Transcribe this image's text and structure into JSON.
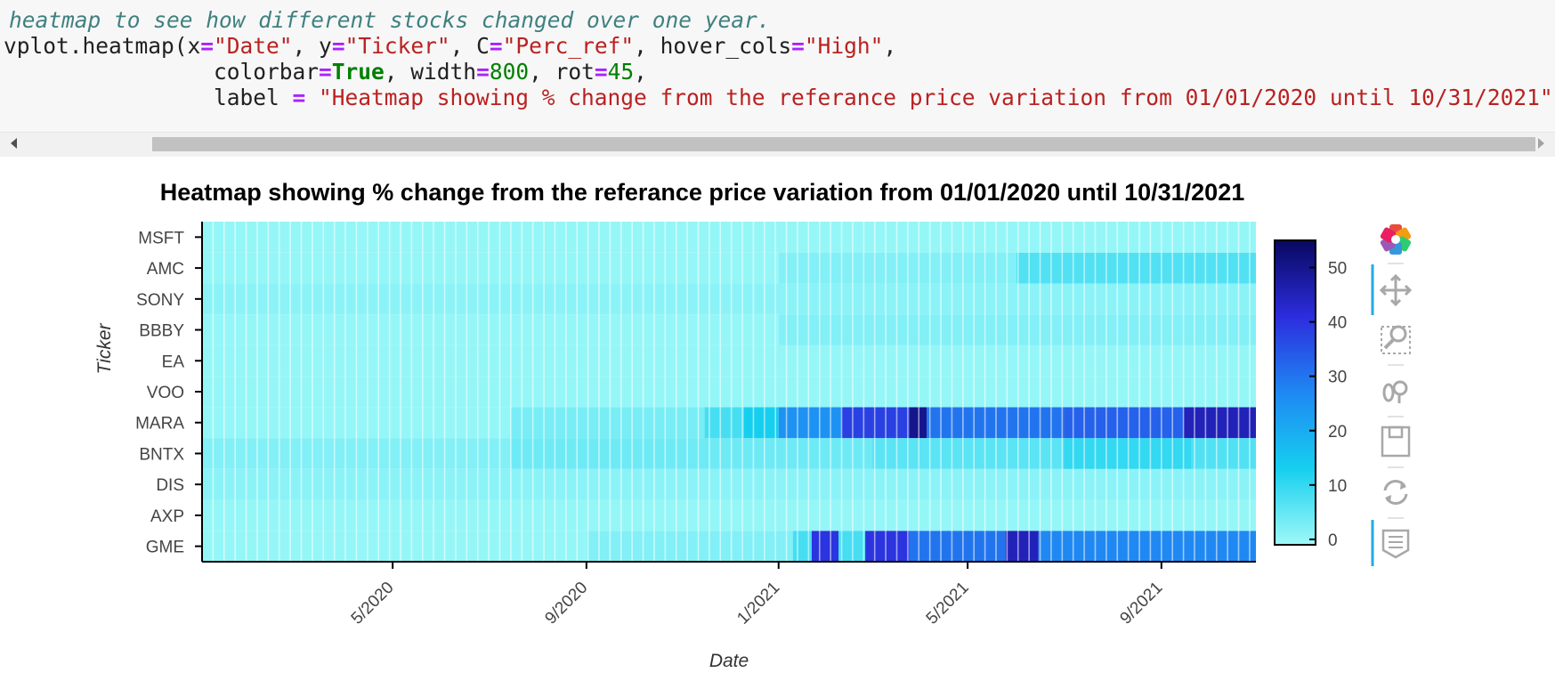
{
  "code": {
    "comment": "heatmap to see how different stocks changed over one year.",
    "line1_parts": [
      {
        "t": "vplot.heatmap(x",
        "c": ""
      },
      {
        "t": "=",
        "c": "op"
      },
      {
        "t": "\"Date\"",
        "c": "str"
      },
      {
        "t": ", y",
        "c": ""
      },
      {
        "t": "=",
        "c": "op"
      },
      {
        "t": "\"Ticker\"",
        "c": "str"
      },
      {
        "t": ", C",
        "c": ""
      },
      {
        "t": "=",
        "c": "op"
      },
      {
        "t": "\"Perc_ref\"",
        "c": "str"
      },
      {
        "t": ", hover_cols",
        "c": ""
      },
      {
        "t": "=",
        "c": "op"
      },
      {
        "t": "\"High\"",
        "c": "str"
      },
      {
        "t": ",",
        "c": ""
      }
    ],
    "line2_parts": [
      {
        "t": "                colorbar",
        "c": ""
      },
      {
        "t": "=",
        "c": "op"
      },
      {
        "t": "True",
        "c": "kw"
      },
      {
        "t": ", width",
        "c": ""
      },
      {
        "t": "=",
        "c": "op"
      },
      {
        "t": "800",
        "c": "num"
      },
      {
        "t": ", rot",
        "c": ""
      },
      {
        "t": "=",
        "c": "op"
      },
      {
        "t": "45",
        "c": "num"
      },
      {
        "t": ",",
        "c": ""
      }
    ],
    "line3_parts": [
      {
        "t": "                label ",
        "c": ""
      },
      {
        "t": "=",
        "c": "op"
      },
      {
        "t": " ",
        "c": ""
      },
      {
        "t": "\"Heatmap showing % change from the referance price variation from 01/01/2020 until 10/31/2021\"",
        "c": "str"
      },
      {
        "t": ")",
        "c": ""
      }
    ]
  },
  "toolbar": {
    "tools": [
      "bokeh-logo-icon",
      "pan-icon",
      "box-zoom-icon",
      "wheel-zoom-icon",
      "save-icon",
      "reset-icon",
      "hover-icon"
    ]
  },
  "colors": {
    "colormap": [
      "#9ff9f8",
      "#16cfef",
      "#1f88f3",
      "#2c2ddd",
      "#080860"
    ],
    "code_background": "#f7f7f7",
    "scrollbar_thumb": "#c1c1c1",
    "toolbar_active": "#26aae1"
  },
  "chart_data": {
    "type": "heatmap",
    "title": "Heatmap showing % change from the referance price variation from 01/01/2020 until 10/31/2021",
    "xlabel": "Date",
    "ylabel": "Ticker",
    "x_start": "2020-01-01",
    "x_end": "2021-10-31",
    "x_ticks": [
      "5/2020",
      "9/2020",
      "1/2021",
      "5/2021",
      "9/2021"
    ],
    "x_tick_dates": [
      "2020-05-01",
      "2020-09-01",
      "2021-01-01",
      "2021-05-01",
      "2021-09-01"
    ],
    "y_categories": [
      "GME",
      "AXP",
      "DIS",
      "BNTX",
      "MARA",
      "VOO",
      "EA",
      "BBBY",
      "SONY",
      "AMC",
      "MSFT"
    ],
    "colorbar": {
      "min": -1,
      "max": 55,
      "ticks": [
        0,
        10,
        20,
        30,
        40,
        50
      ]
    },
    "series": [
      {
        "name": "GME",
        "segments": [
          {
            "from": "2020-01-01",
            "to": "2020-09-01",
            "value": 0
          },
          {
            "from": "2020-09-01",
            "to": "2021-01-10",
            "value": 2
          },
          {
            "from": "2021-01-10",
            "to": "2021-01-22",
            "value": 8
          },
          {
            "from": "2021-01-22",
            "to": "2021-02-08",
            "value": 40
          },
          {
            "from": "2021-02-08",
            "to": "2021-02-25",
            "value": 8
          },
          {
            "from": "2021-02-25",
            "to": "2021-03-25",
            "value": 40
          },
          {
            "from": "2021-03-25",
            "to": "2021-05-25",
            "value": 30
          },
          {
            "from": "2021-05-25",
            "to": "2021-06-15",
            "value": 45
          },
          {
            "from": "2021-06-15",
            "to": "2021-10-31",
            "value": 27
          }
        ]
      },
      {
        "name": "AXP",
        "segments": [
          {
            "from": "2020-01-01",
            "to": "2021-10-31",
            "value": 0
          }
        ]
      },
      {
        "name": "DIS",
        "segments": [
          {
            "from": "2020-01-01",
            "to": "2021-10-31",
            "value": 1
          }
        ]
      },
      {
        "name": "BNTX",
        "segments": [
          {
            "from": "2020-01-01",
            "to": "2020-07-15",
            "value": 2
          },
          {
            "from": "2020-07-15",
            "to": "2021-03-01",
            "value": 4
          },
          {
            "from": "2021-03-01",
            "to": "2021-07-01",
            "value": 6
          },
          {
            "from": "2021-07-01",
            "to": "2021-09-20",
            "value": 10
          },
          {
            "from": "2021-09-20",
            "to": "2021-10-31",
            "value": 7
          }
        ]
      },
      {
        "name": "MARA",
        "segments": [
          {
            "from": "2020-01-01",
            "to": "2020-07-15",
            "value": 0
          },
          {
            "from": "2020-07-15",
            "to": "2020-11-15",
            "value": 3
          },
          {
            "from": "2020-11-15",
            "to": "2020-12-10",
            "value": 8
          },
          {
            "from": "2020-12-10",
            "to": "2021-01-01",
            "value": 13
          },
          {
            "from": "2021-01-01",
            "to": "2021-02-10",
            "value": 25
          },
          {
            "from": "2021-02-10",
            "to": "2021-03-25",
            "value": 38
          },
          {
            "from": "2021-03-25",
            "to": "2021-04-05",
            "value": 50
          },
          {
            "from": "2021-04-05",
            "to": "2021-07-01",
            "value": 30
          },
          {
            "from": "2021-07-01",
            "to": "2021-09-15",
            "value": 33
          },
          {
            "from": "2021-09-15",
            "to": "2021-10-31",
            "value": 45
          }
        ]
      },
      {
        "name": "VOO",
        "segments": [
          {
            "from": "2020-01-01",
            "to": "2021-10-31",
            "value": 0
          }
        ]
      },
      {
        "name": "EA",
        "segments": [
          {
            "from": "2020-01-01",
            "to": "2021-10-31",
            "value": 0
          }
        ]
      },
      {
        "name": "BBBY",
        "segments": [
          {
            "from": "2020-01-01",
            "to": "2021-01-01",
            "value": 0
          },
          {
            "from": "2021-01-01",
            "to": "2021-10-31",
            "value": 2
          }
        ]
      },
      {
        "name": "SONY",
        "segments": [
          {
            "from": "2020-01-01",
            "to": "2021-10-31",
            "value": 1
          }
        ]
      },
      {
        "name": "AMC",
        "segments": [
          {
            "from": "2020-01-01",
            "to": "2021-01-01",
            "value": 0
          },
          {
            "from": "2021-01-01",
            "to": "2021-06-01",
            "value": 2
          },
          {
            "from": "2021-06-01",
            "to": "2021-10-31",
            "value": 7
          }
        ]
      },
      {
        "name": "MSFT",
        "segments": [
          {
            "from": "2020-01-01",
            "to": "2021-10-31",
            "value": 0
          }
        ]
      }
    ]
  }
}
